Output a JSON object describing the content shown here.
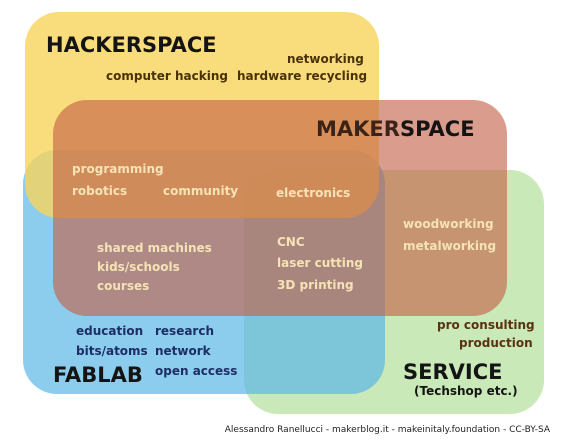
{
  "regions": {
    "hackerspace": {
      "title": "HACKERSPACE",
      "items": [
        "networking",
        "computer hacking",
        "hardware recycling"
      ],
      "color": "#f7d872"
    },
    "makerspace": {
      "title_prefix": "MAKER",
      "title_suffix": "SPACE",
      "items": [
        "programming",
        "robotics",
        "community",
        "electronics"
      ],
      "color": "#cf7258"
    },
    "fablab": {
      "title": "FABLAB",
      "items": [
        "education",
        "research",
        "bits/atoms",
        "network",
        "open access"
      ],
      "color": "#7ec8e8"
    },
    "service": {
      "title": "SERVICE",
      "subtitle": "(Techshop etc.)",
      "items": [
        "woodworking",
        "metalworking",
        "pro consulting",
        "production"
      ],
      "color": "#bfe6a8"
    }
  },
  "shared": {
    "left_items": [
      "shared machines",
      "kids/schools",
      "courses"
    ],
    "center_items": [
      "CNC",
      "laser cutting",
      "3D printing"
    ]
  },
  "credit": "Alessandro Ranellucci - makerblog.it - makeinitaly.foundation - CC-BY-SA"
}
